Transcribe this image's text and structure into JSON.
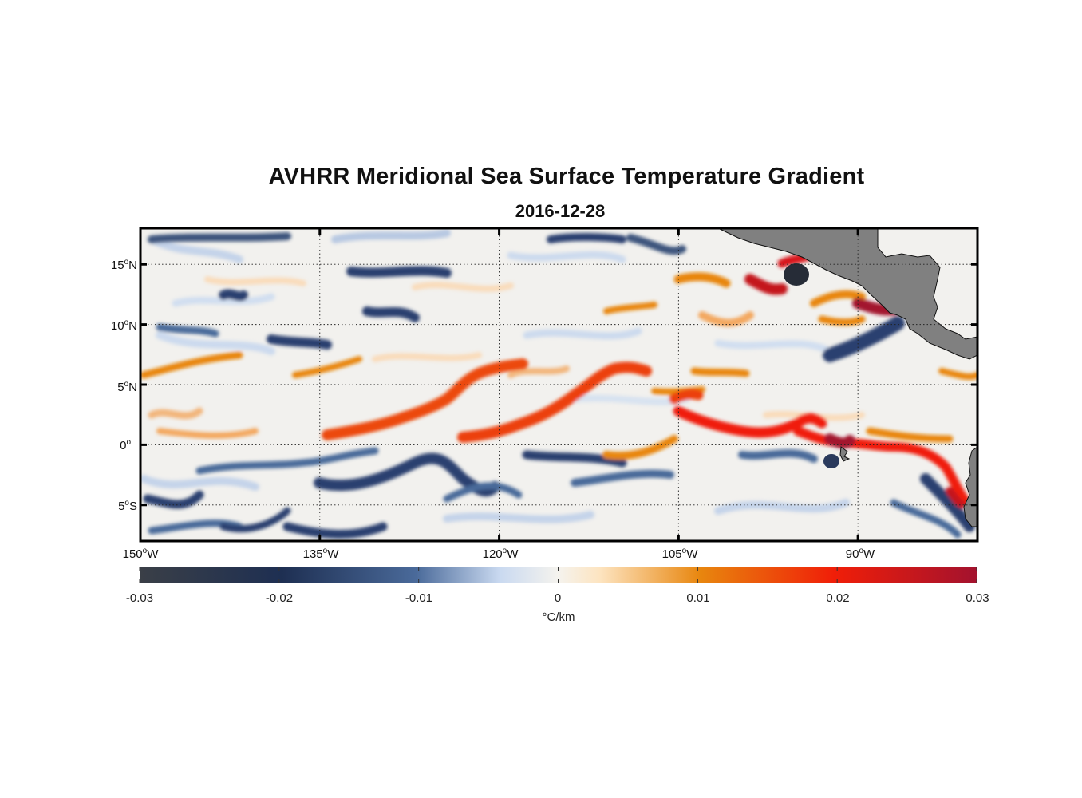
{
  "title": "AVHRR Meridional Sea Surface Temperature Gradient",
  "subtitle": "2016-12-28",
  "map": {
    "lat_ticks": [
      {
        "deg": "15",
        "hemi": "N"
      },
      {
        "deg": "10",
        "hemi": "N"
      },
      {
        "deg": "5",
        "hemi": "N"
      },
      {
        "deg": "0",
        "hemi": ""
      },
      {
        "deg": "5",
        "hemi": "S"
      }
    ],
    "lon_ticks": [
      {
        "deg": "150",
        "hemi": "W"
      },
      {
        "deg": "135",
        "hemi": "W"
      },
      {
        "deg": "120",
        "hemi": "W"
      },
      {
        "deg": "105",
        "hemi": "W"
      },
      {
        "deg": "90",
        "hemi": "W"
      }
    ],
    "lon_range": [
      -150,
      -80
    ],
    "lat_range": [
      -8,
      18
    ],
    "land_color": "#808080",
    "grid": "dotted"
  },
  "colorbar": {
    "ticks": [
      "-0.03",
      "-0.02",
      "-0.01",
      "0",
      "0.01",
      "0.02",
      "0.03"
    ],
    "label": "°C/km",
    "range": [
      -0.03,
      0.03
    ],
    "colors": {
      "min": "#3a3f47",
      "neg_dark": "#1e2f52",
      "neg_mid": "#4a6a9a",
      "neg_light": "#c9d9f0",
      "zero": "#f5f3ee",
      "pos_light": "#fde4c0",
      "pos_mid": "#e8860e",
      "pos_dark": "#f01e08",
      "max": "#a3122e"
    }
  }
}
